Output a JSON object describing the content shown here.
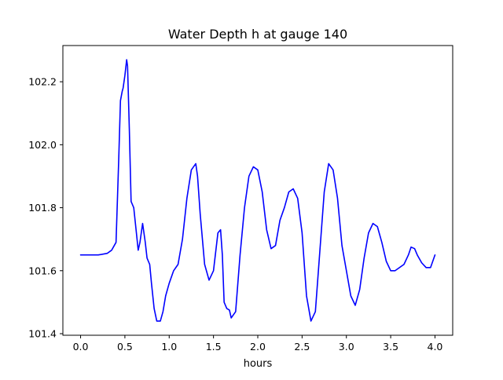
{
  "chart_data": {
    "type": "line",
    "title": "Water Depth h at gauge 140",
    "xlabel": "hours",
    "ylabel": "",
    "xlim": [
      -0.2,
      4.2
    ],
    "ylim": [
      101.395,
      102.315
    ],
    "xticks": [
      0.0,
      0.5,
      1.0,
      1.5,
      2.0,
      2.5,
      3.0,
      3.5,
      4.0
    ],
    "xtick_labels": [
      "0.0",
      "0.5",
      "1.0",
      "1.5",
      "2.0",
      "2.5",
      "3.0",
      "3.5",
      "4.0"
    ],
    "yticks": [
      101.4,
      101.6,
      101.8,
      102.0,
      102.2
    ],
    "ytick_labels": [
      "101.4",
      "101.6",
      "101.8",
      "102.0",
      "102.2"
    ],
    "grid": false,
    "series": [
      {
        "color": "#0000ff",
        "x": [
          0.0,
          0.1,
          0.2,
          0.3,
          0.35,
          0.4,
          0.43,
          0.45,
          0.47,
          0.48,
          0.5,
          0.52,
          0.53,
          0.55,
          0.57,
          0.6,
          0.63,
          0.65,
          0.67,
          0.7,
          0.73,
          0.75,
          0.78,
          0.8,
          0.83,
          0.86,
          0.9,
          0.93,
          0.96,
          1.0,
          1.05,
          1.1,
          1.15,
          1.2,
          1.25,
          1.3,
          1.32,
          1.35,
          1.4,
          1.45,
          1.5,
          1.55,
          1.58,
          1.6,
          1.62,
          1.65,
          1.68,
          1.7,
          1.75,
          1.8,
          1.85,
          1.9,
          1.95,
          2.0,
          2.05,
          2.1,
          2.15,
          2.2,
          2.25,
          2.3,
          2.35,
          2.4,
          2.45,
          2.5,
          2.55,
          2.6,
          2.65,
          2.7,
          2.75,
          2.8,
          2.85,
          2.9,
          2.95,
          3.0,
          3.05,
          3.1,
          3.15,
          3.2,
          3.25,
          3.3,
          3.35,
          3.4,
          3.45,
          3.5,
          3.55,
          3.6,
          3.65,
          3.7,
          3.73,
          3.77,
          3.8,
          3.85,
          3.9,
          3.95,
          4.0
        ],
        "y": [
          101.65,
          101.65,
          101.65,
          101.655,
          101.665,
          101.69,
          101.95,
          102.14,
          102.17,
          102.18,
          102.22,
          102.27,
          102.25,
          102.05,
          101.82,
          101.8,
          101.72,
          101.665,
          101.69,
          101.75,
          101.69,
          101.64,
          101.62,
          101.56,
          101.48,
          101.44,
          101.44,
          101.47,
          101.52,
          101.56,
          101.6,
          101.62,
          101.7,
          101.83,
          101.92,
          101.94,
          101.9,
          101.78,
          101.62,
          101.57,
          101.6,
          101.72,
          101.73,
          101.65,
          101.5,
          101.48,
          101.475,
          101.45,
          101.47,
          101.65,
          101.8,
          101.9,
          101.93,
          101.92,
          101.85,
          101.73,
          101.67,
          101.68,
          101.76,
          101.8,
          101.85,
          101.86,
          101.83,
          101.72,
          101.52,
          101.44,
          101.47,
          101.66,
          101.85,
          101.94,
          101.92,
          101.83,
          101.68,
          101.6,
          101.52,
          101.49,
          101.54,
          101.64,
          101.72,
          101.75,
          101.74,
          101.69,
          101.63,
          101.6,
          101.6,
          101.61,
          101.62,
          101.65,
          101.675,
          101.67,
          101.65,
          101.625,
          101.61,
          101.61,
          101.65
        ]
      }
    ]
  }
}
